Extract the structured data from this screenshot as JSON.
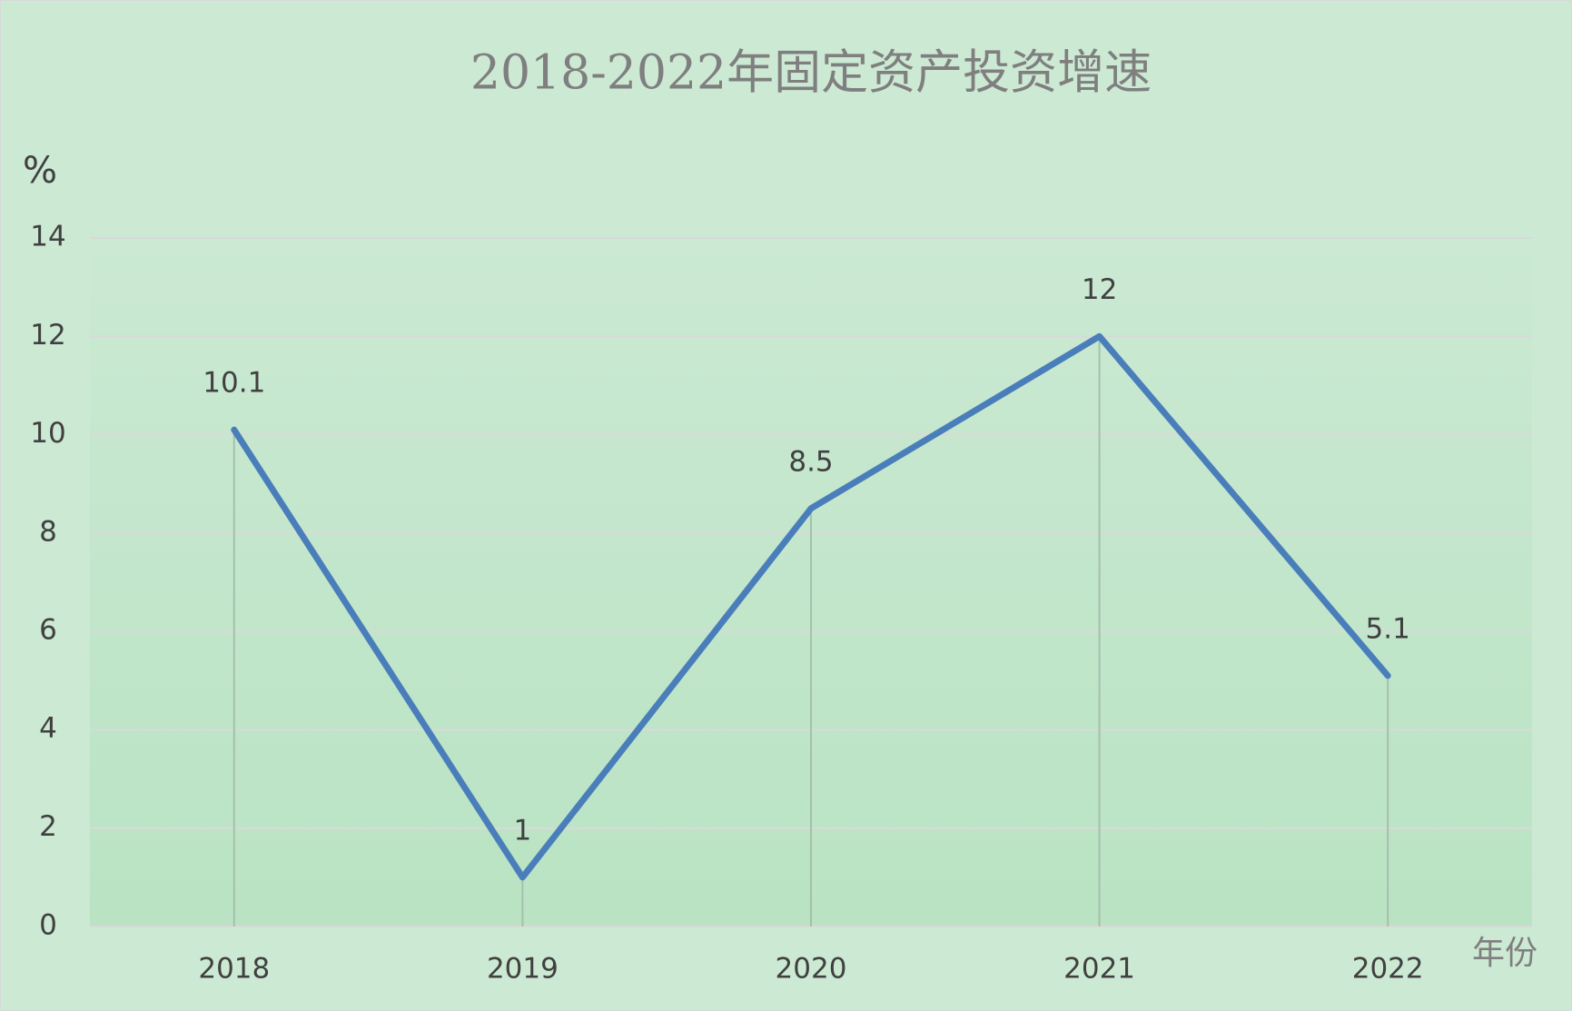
{
  "chart_data": {
    "type": "line",
    "title": "2018-2022年固定资产投资增速",
    "y_label": "%",
    "x_label": "年份",
    "categories": [
      "2018",
      "2019",
      "2020",
      "2021",
      "2022"
    ],
    "values": [
      10.1,
      1,
      8.5,
      12,
      5.1
    ],
    "color": "#4a7ebb",
    "ylim": [
      0,
      14
    ],
    "yticks": [
      0,
      2,
      4,
      6,
      8,
      10,
      12,
      14
    ],
    "grid": true,
    "drop_lines": true
  }
}
